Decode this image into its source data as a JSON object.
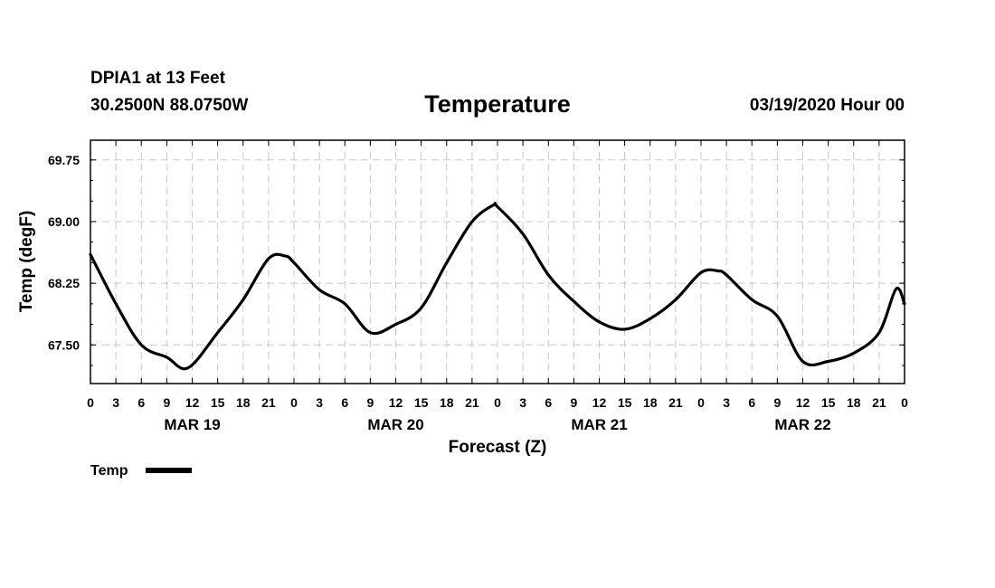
{
  "header": {
    "station": "DPIA1 at 13 Feet",
    "coords": "30.2500N 88.0750W",
    "title": "Temperature",
    "date": "03/19/2020 Hour 00"
  },
  "chart_data": {
    "type": "line",
    "title": "Temperature",
    "xlabel": "Forecast (Z)",
    "ylabel": "Temp (degF)",
    "ylim": [
      67.03,
      69.99
    ],
    "xlim": [
      0,
      96
    ],
    "grid": true,
    "legend_position": "bottom-left",
    "y_ticks": [
      67.5,
      68.25,
      69.0,
      69.75
    ],
    "y_tick_labels": [
      "67.50",
      "68.25",
      "69.00",
      "69.75"
    ],
    "x_ticks": [
      0,
      3,
      6,
      9,
      12,
      15,
      18,
      21,
      24,
      27,
      30,
      33,
      36,
      39,
      42,
      45,
      48,
      51,
      54,
      57,
      60,
      63,
      66,
      69,
      72,
      75,
      78,
      81,
      84,
      87,
      90,
      93,
      96
    ],
    "x_tick_labels": [
      "0",
      "3",
      "6",
      "9",
      "12",
      "15",
      "18",
      "21",
      "0",
      "3",
      "6",
      "9",
      "12",
      "15",
      "18",
      "21",
      "0",
      "3",
      "6",
      "9",
      "12",
      "15",
      "18",
      "21",
      "0",
      "3",
      "6",
      "9",
      "12",
      "15",
      "18",
      "21",
      "0"
    ],
    "day_labels": [
      {
        "label": "MAR 19",
        "hour": 12
      },
      {
        "label": "MAR 20",
        "hour": 36
      },
      {
        "label": "MAR 21",
        "hour": 60
      },
      {
        "label": "MAR 22",
        "hour": 84
      }
    ],
    "series": [
      {
        "name": "Temp",
        "color": "#000000",
        "x": [
          0,
          3,
          6,
          9,
          11.5,
          15,
          18,
          21,
          23,
          24,
          27,
          30,
          33,
          36,
          39,
          42,
          45,
          47.5,
          48,
          51,
          54,
          57,
          60,
          63,
          66,
          69,
          72,
          74,
          75,
          78,
          81,
          84,
          87,
          90,
          93,
          95,
          96
        ],
        "values": [
          68.6,
          68.0,
          67.5,
          67.35,
          67.22,
          67.65,
          68.05,
          68.55,
          68.58,
          68.5,
          68.17,
          68.0,
          67.65,
          67.75,
          67.95,
          68.5,
          69.0,
          69.2,
          69.18,
          68.85,
          68.35,
          68.03,
          67.78,
          67.69,
          67.82,
          68.05,
          68.38,
          68.4,
          68.35,
          68.05,
          67.85,
          67.3,
          67.3,
          67.4,
          67.65,
          68.18,
          68.0
        ]
      }
    ],
    "legend": [
      {
        "label": "Temp",
        "color": "#000000"
      }
    ]
  }
}
